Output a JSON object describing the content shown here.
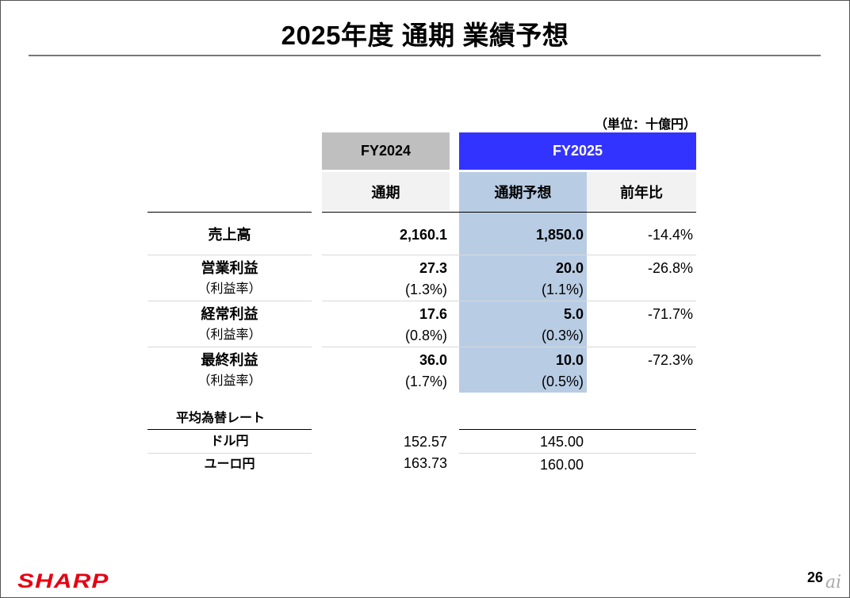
{
  "title": "2025年度 通期 業績予想",
  "unit": "（単位：十億円）",
  "headers": {
    "fy2024": "FY2024",
    "fy2025": "FY2025",
    "fy2024_sub": "通期",
    "fy2025_sub": "通期予想",
    "yoy_sub": "前年比"
  },
  "rows": [
    {
      "label": "売上高",
      "fy2024": "2,160.1",
      "fy2025": "1,850.0",
      "yoy": "-14.4%"
    },
    {
      "label": "営業利益",
      "fy2024": "27.3",
      "fy2025": "20.0",
      "yoy": "-26.8%"
    },
    {
      "label": "（利益率）",
      "fy2024": "(1.3%)",
      "fy2025": "(1.1%)",
      "yoy": ""
    },
    {
      "label": "経常利益",
      "fy2024": "17.6",
      "fy2025": "5.0",
      "yoy": "-71.7%"
    },
    {
      "label": "（利益率）",
      "fy2024": "(0.8%)",
      "fy2025": "(0.3%)",
      "yoy": ""
    },
    {
      "label": "最終利益",
      "fy2024": "36.0",
      "fy2025": "10.0",
      "yoy": "-72.3%"
    },
    {
      "label": "（利益率）",
      "fy2024": "(1.7%)",
      "fy2025": "(0.5%)",
      "yoy": ""
    }
  ],
  "fx": {
    "label": "平均為替レート",
    "rows": [
      {
        "label": "ドル円",
        "fy2024": "152.57",
        "fy2025": "145.00"
      },
      {
        "label": "ユーロ円",
        "fy2024": "163.73",
        "fy2025": "160.00"
      }
    ]
  },
  "footer": {
    "logo": "SHARP",
    "page": "26",
    "watermark": "ai"
  },
  "colors": {
    "fy2025_header": "#3333ff",
    "forecast_band": "#b8cce4",
    "fy2024_header": "#bfbfbf",
    "logo": "#e60012"
  }
}
